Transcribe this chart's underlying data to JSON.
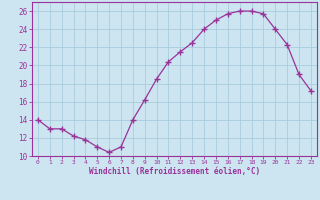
{
  "x": [
    0,
    1,
    2,
    3,
    4,
    5,
    6,
    7,
    8,
    9,
    10,
    11,
    12,
    13,
    14,
    15,
    16,
    17,
    18,
    19,
    20,
    21,
    22,
    23
  ],
  "y": [
    14.0,
    13.0,
    13.0,
    12.2,
    11.8,
    11.0,
    10.4,
    11.0,
    14.0,
    16.2,
    18.5,
    20.4,
    21.5,
    22.5,
    24.0,
    25.0,
    25.7,
    26.0,
    26.0,
    25.7,
    24.0,
    22.3,
    19.0,
    17.2
  ],
  "line_color": "#993399",
  "marker": "+",
  "marker_size": 4,
  "bg_color": "#cce5f0",
  "grid_color": "#aaccdd",
  "xlabel": "Windchill (Refroidissement éolien,°C)",
  "xlabel_color": "#993399",
  "tick_color": "#993399",
  "ylim": [
    10,
    27
  ],
  "yticks": [
    10,
    12,
    14,
    16,
    18,
    20,
    22,
    24,
    26
  ],
  "xlim": [
    -0.5,
    23.5
  ],
  "xticks": [
    0,
    1,
    2,
    3,
    4,
    5,
    6,
    7,
    8,
    9,
    10,
    11,
    12,
    13,
    14,
    15,
    16,
    17,
    18,
    19,
    20,
    21,
    22,
    23
  ]
}
